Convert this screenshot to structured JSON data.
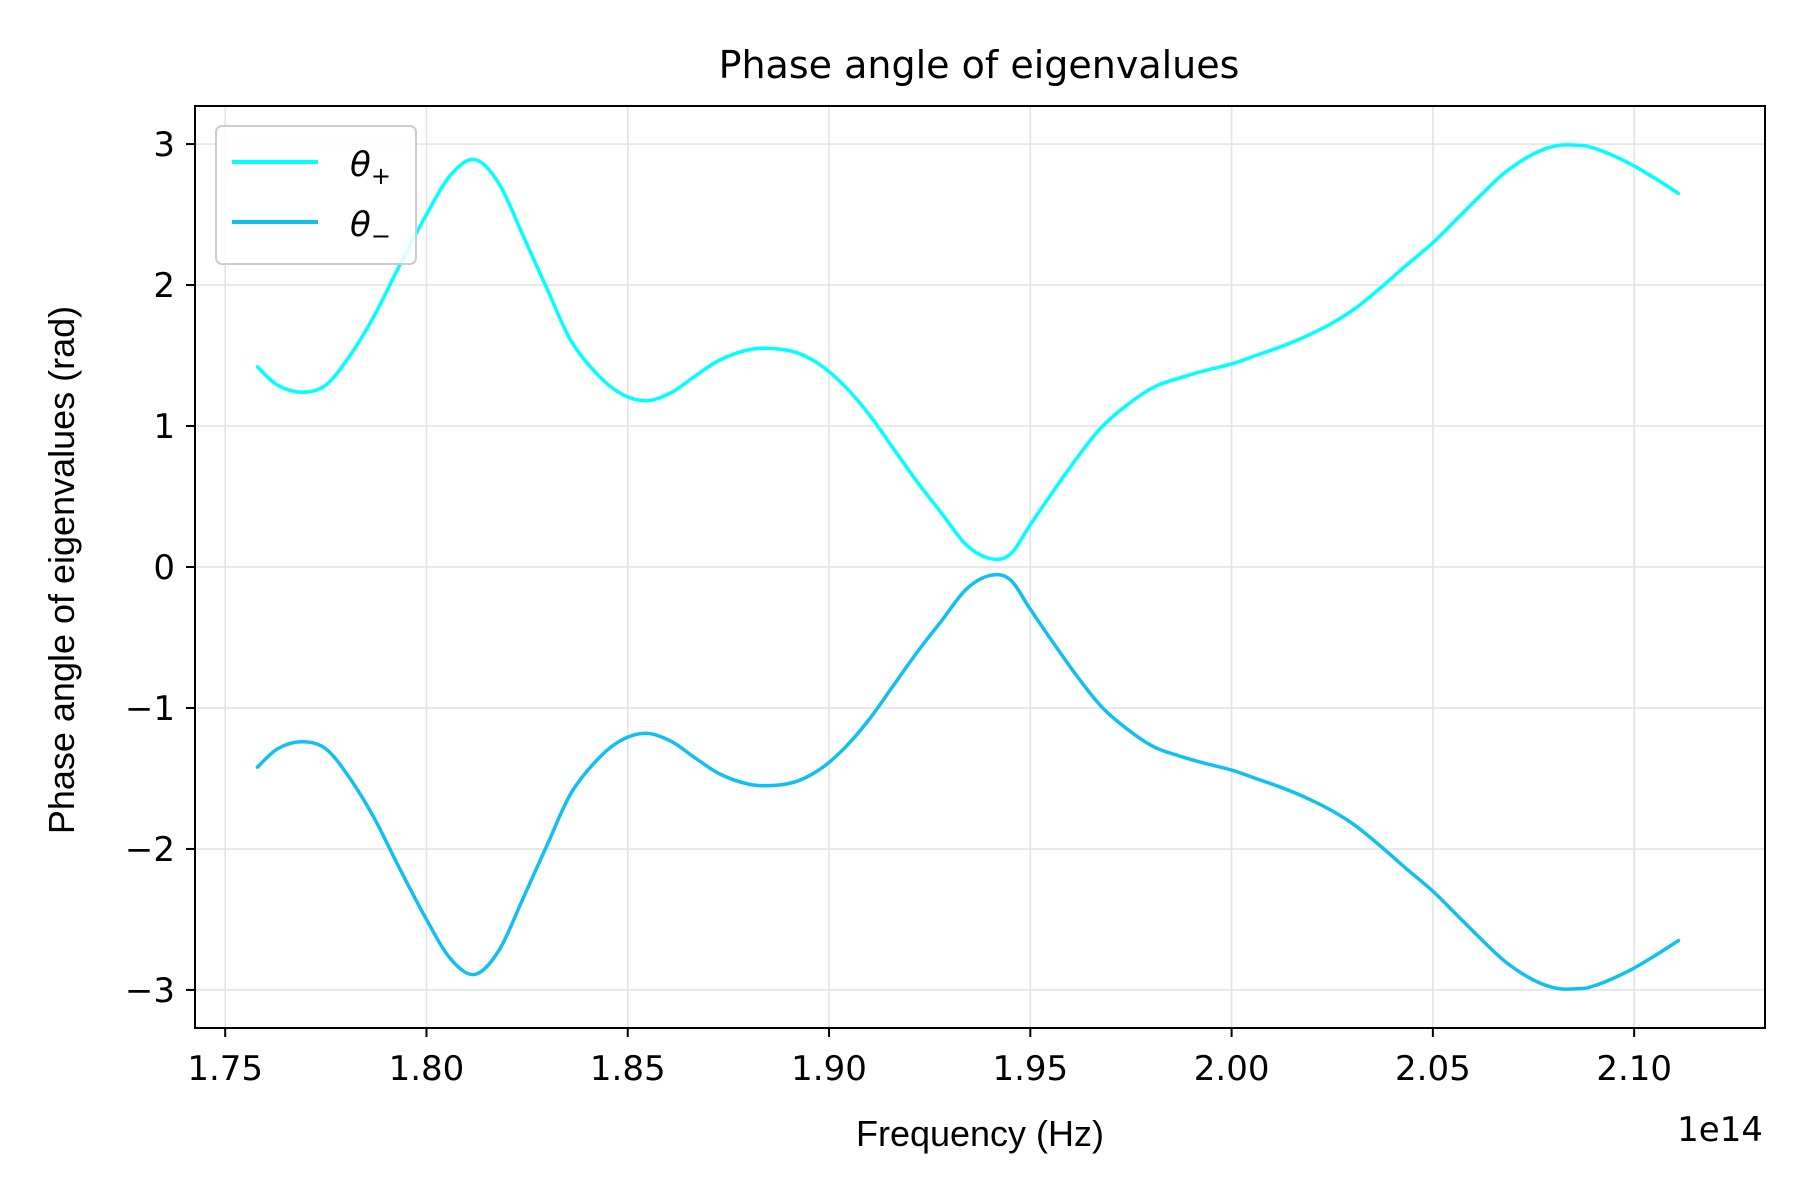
{
  "chart_data": {
    "type": "line",
    "title": "Phase angle of eigenvalues",
    "xlabel": "Frequency (Hz)",
    "ylabel": "Phase angle of eigenvalues (rad)",
    "x_offset_label": "1e14",
    "x_scale": 100000000000000.0,
    "xlim": [
      1.7425,
      2.1325
    ],
    "ylim": [
      -3.27,
      3.27
    ],
    "grid": true,
    "legend_position": "upper-left",
    "x_ticks": [
      1.75,
      1.8,
      1.85,
      1.9,
      1.95,
      2.0,
      2.05,
      2.1
    ],
    "x_tick_labels": [
      "1.75",
      "1.80",
      "1.85",
      "1.90",
      "1.95",
      "2.00",
      "2.05",
      "2.10"
    ],
    "y_ticks": [
      3,
      2,
      1,
      0,
      -1,
      -2,
      -3
    ],
    "y_tick_labels": [
      "3",
      "2",
      "1",
      "0",
      "−1",
      "−2",
      "−3"
    ],
    "series": [
      {
        "name": "θ+",
        "label_base": "θ",
        "label_sub": "+",
        "color": "#00ffff",
        "x": [
          1.758,
          1.763,
          1.769,
          1.775,
          1.781,
          1.787,
          1.793,
          1.8,
          1.806,
          1.812,
          1.818,
          1.824,
          1.83,
          1.836,
          1.843,
          1.849,
          1.855,
          1.861,
          1.867,
          1.873,
          1.88,
          1.886,
          1.892,
          1.898,
          1.904,
          1.91,
          1.916,
          1.922,
          1.928,
          1.934,
          1.94,
          1.945,
          1.95,
          1.956,
          1.962,
          1.968,
          1.975,
          1.981,
          1.987,
          1.993,
          2.0,
          2.006,
          2.012,
          2.018,
          2.025,
          2.031,
          2.037,
          2.043,
          2.05,
          2.056,
          2.062,
          2.068,
          2.075,
          2.081,
          2.087,
          2.089,
          2.093,
          2.099,
          2.105,
          2.111
        ],
        "y": [
          1.42,
          1.29,
          1.24,
          1.29,
          1.5,
          1.78,
          2.12,
          2.5,
          2.78,
          2.89,
          2.72,
          2.35,
          1.97,
          1.6,
          1.35,
          1.22,
          1.18,
          1.24,
          1.36,
          1.47,
          1.54,
          1.55,
          1.52,
          1.43,
          1.28,
          1.08,
          0.84,
          0.6,
          0.38,
          0.16,
          0.06,
          0.09,
          0.3,
          0.55,
          0.79,
          1.0,
          1.17,
          1.28,
          1.34,
          1.39,
          1.44,
          1.5,
          1.56,
          1.63,
          1.73,
          1.84,
          1.98,
          2.13,
          2.3,
          2.47,
          2.64,
          2.8,
          2.93,
          2.99,
          2.99,
          2.98,
          2.94,
          2.86,
          2.76,
          2.65
        ]
      },
      {
        "name": "θ−",
        "label_base": "θ",
        "label_sub": "−",
        "color": "#10c0f0",
        "x": [
          1.758,
          1.763,
          1.769,
          1.775,
          1.781,
          1.787,
          1.793,
          1.8,
          1.806,
          1.812,
          1.818,
          1.824,
          1.83,
          1.836,
          1.843,
          1.849,
          1.855,
          1.861,
          1.867,
          1.873,
          1.88,
          1.886,
          1.892,
          1.898,
          1.904,
          1.91,
          1.916,
          1.922,
          1.928,
          1.934,
          1.94,
          1.945,
          1.95,
          1.956,
          1.962,
          1.968,
          1.975,
          1.981,
          1.987,
          1.993,
          2.0,
          2.006,
          2.012,
          2.018,
          2.025,
          2.031,
          2.037,
          2.043,
          2.05,
          2.056,
          2.062,
          2.068,
          2.075,
          2.081,
          2.087,
          2.089,
          2.093,
          2.099,
          2.105,
          2.111
        ],
        "y": [
          -1.42,
          -1.29,
          -1.24,
          -1.29,
          -1.5,
          -1.78,
          -2.12,
          -2.5,
          -2.78,
          -2.89,
          -2.72,
          -2.35,
          -1.97,
          -1.6,
          -1.35,
          -1.22,
          -1.18,
          -1.24,
          -1.36,
          -1.47,
          -1.54,
          -1.55,
          -1.52,
          -1.43,
          -1.28,
          -1.08,
          -0.84,
          -0.6,
          -0.38,
          -0.16,
          -0.06,
          -0.09,
          -0.3,
          -0.55,
          -0.79,
          -1.0,
          -1.17,
          -1.28,
          -1.34,
          -1.39,
          -1.44,
          -1.5,
          -1.56,
          -1.63,
          -1.73,
          -1.84,
          -1.98,
          -2.13,
          -2.3,
          -2.47,
          -2.64,
          -2.8,
          -2.93,
          -2.99,
          -2.99,
          -2.98,
          -2.94,
          -2.86,
          -2.76,
          -2.65
        ]
      }
    ]
  }
}
